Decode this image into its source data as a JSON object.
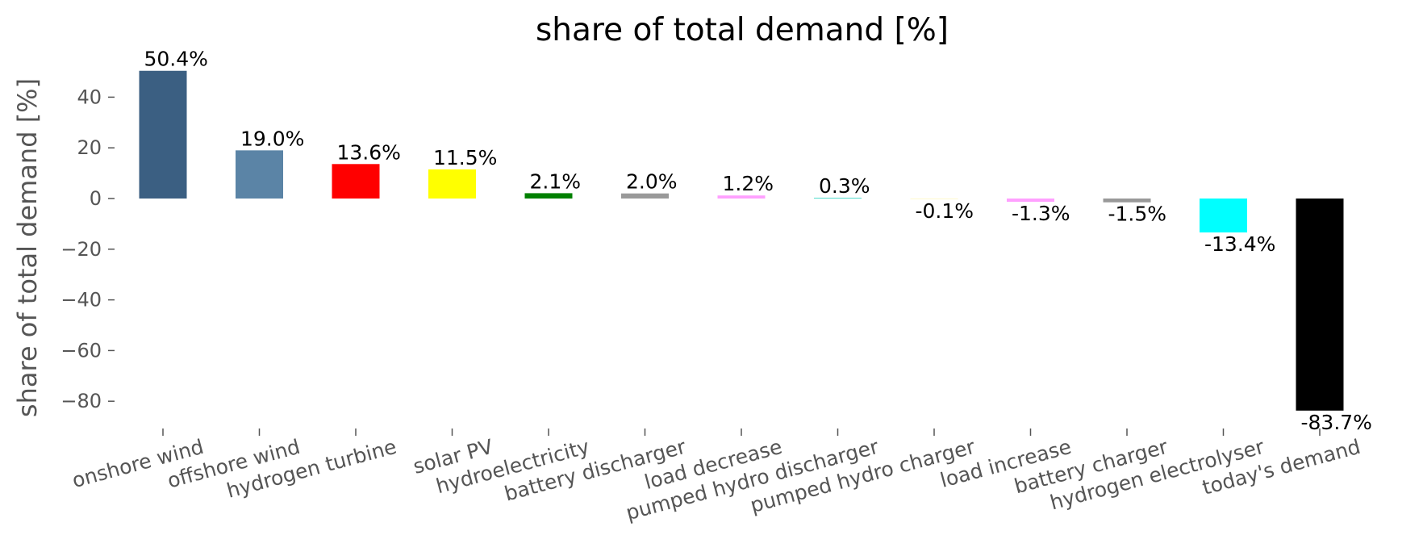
{
  "chart_data": {
    "type": "bar",
    "title": "share of total demand [%]",
    "xlabel": "",
    "ylabel": "share of total demand [%]",
    "ylim": [
      -91,
      55
    ],
    "yticks": [
      40,
      20,
      0,
      -20,
      -40,
      -60,
      -80
    ],
    "ytick_labels": [
      "40",
      "20",
      "0",
      "−20",
      "−40",
      "−60",
      "−80"
    ],
    "grid": false,
    "categories": [
      "onshore wind",
      "offshore wind",
      "hydrogen turbine",
      "solar PV",
      "hydroelectricity",
      "battery discharger",
      "load decrease",
      "pumped hydro discharger",
      "pumped hydro charger",
      "load increase",
      "battery charger",
      "hydrogen electrolyser",
      "today's demand"
    ],
    "values": [
      50.4,
      19.0,
      13.6,
      11.5,
      2.1,
      2.0,
      1.2,
      0.3,
      -0.1,
      -1.3,
      -1.5,
      -13.4,
      -83.7
    ],
    "data_labels": [
      "50.4%",
      "19.0%",
      "13.6%",
      "11.5%",
      "2.1%",
      "2.0%",
      "1.2%",
      "0.3%",
      "-0.1%",
      "-1.3%",
      "-1.5%",
      "-13.4%",
      "-83.7%"
    ],
    "colors": [
      "#3b5f82",
      "#5b84a6",
      "#ff0000",
      "#ffff00",
      "#008000",
      "#999999",
      "#ffa0ff",
      "#51dbcc",
      "#fffacd",
      "#ffa0ff",
      "#999999",
      "#00ffff",
      "#000000"
    ]
  }
}
